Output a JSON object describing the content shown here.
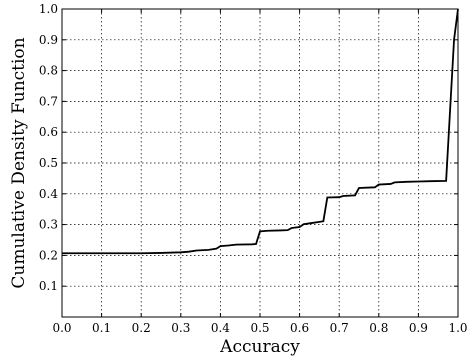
{
  "chart_data": {
    "type": "line",
    "title": "",
    "xlabel": "Accuracy",
    "ylabel": "Cumulative Density Function",
    "xlim": [
      0.0,
      1.0
    ],
    "ylim": [
      0.0,
      1.0
    ],
    "grid": true,
    "x_ticks": [
      "0.0",
      "0.1",
      "0.2",
      "0.3",
      "0.4",
      "0.5",
      "0.6",
      "0.7",
      "0.8",
      "0.9",
      "1.0"
    ],
    "y_ticks": [
      "0.1",
      "0.2",
      "0.3",
      "0.4",
      "0.5",
      "0.6",
      "0.7",
      "0.8",
      "0.9",
      "1.0"
    ],
    "series": [
      {
        "points": [
          [
            0.0,
            0.207
          ],
          [
            0.1,
            0.207
          ],
          [
            0.2,
            0.207
          ],
          [
            0.25,
            0.208
          ],
          [
            0.3,
            0.21
          ],
          [
            0.32,
            0.212
          ],
          [
            0.34,
            0.216
          ],
          [
            0.37,
            0.218
          ],
          [
            0.39,
            0.222
          ],
          [
            0.4,
            0.23
          ],
          [
            0.42,
            0.232
          ],
          [
            0.44,
            0.235
          ],
          [
            0.48,
            0.236
          ],
          [
            0.49,
            0.237
          ],
          [
            0.5,
            0.278
          ],
          [
            0.52,
            0.28
          ],
          [
            0.55,
            0.281
          ],
          [
            0.57,
            0.282
          ],
          [
            0.58,
            0.289
          ],
          [
            0.6,
            0.292
          ],
          [
            0.61,
            0.301
          ],
          [
            0.63,
            0.305
          ],
          [
            0.65,
            0.309
          ],
          [
            0.66,
            0.311
          ],
          [
            0.67,
            0.388
          ],
          [
            0.7,
            0.389
          ],
          [
            0.71,
            0.393
          ],
          [
            0.74,
            0.395
          ],
          [
            0.75,
            0.419
          ],
          [
            0.79,
            0.421
          ],
          [
            0.8,
            0.43
          ],
          [
            0.83,
            0.432
          ],
          [
            0.84,
            0.437
          ],
          [
            0.87,
            0.439
          ],
          [
            0.9,
            0.44
          ],
          [
            0.93,
            0.441
          ],
          [
            0.97,
            0.442
          ],
          [
            0.99,
            0.9
          ],
          [
            1.0,
            1.0
          ]
        ]
      }
    ]
  }
}
